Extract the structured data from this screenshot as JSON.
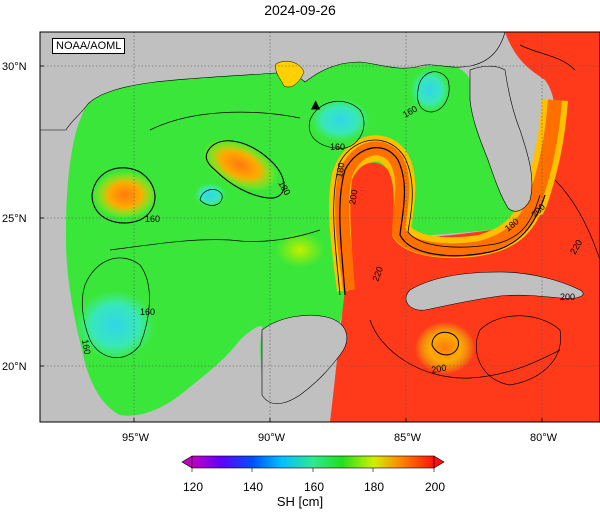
{
  "title": "2024-09-26",
  "credit": "NOAA/AOML",
  "variable": "SH [cm]",
  "lat_ticks": [
    "30°N",
    "25°N",
    "20°N"
  ],
  "lon_ticks": [
    "95°W",
    "90°W",
    "85°W",
    "80°W"
  ],
  "colorbar": {
    "ticks": [
      "120",
      "140",
      "160",
      "180",
      "200"
    ],
    "min": 120,
    "max": 200
  },
  "contour_labels": [
    "160",
    "160",
    "180",
    "180",
    "160",
    "200",
    "180",
    "220",
    "200",
    "160",
    "160",
    "180",
    "200",
    "220",
    "200",
    "200"
  ],
  "colors": {
    "land": "#c0c0c0",
    "ocean_green": "#2de62d",
    "warm_red": "#ff3a1a",
    "loop_orange": "#ff8a00",
    "cool_cyan": "#40e0c0",
    "grid": "#555555"
  },
  "markers": [
    {
      "name": "buoy-triangle",
      "symbol": "▲"
    }
  ]
}
